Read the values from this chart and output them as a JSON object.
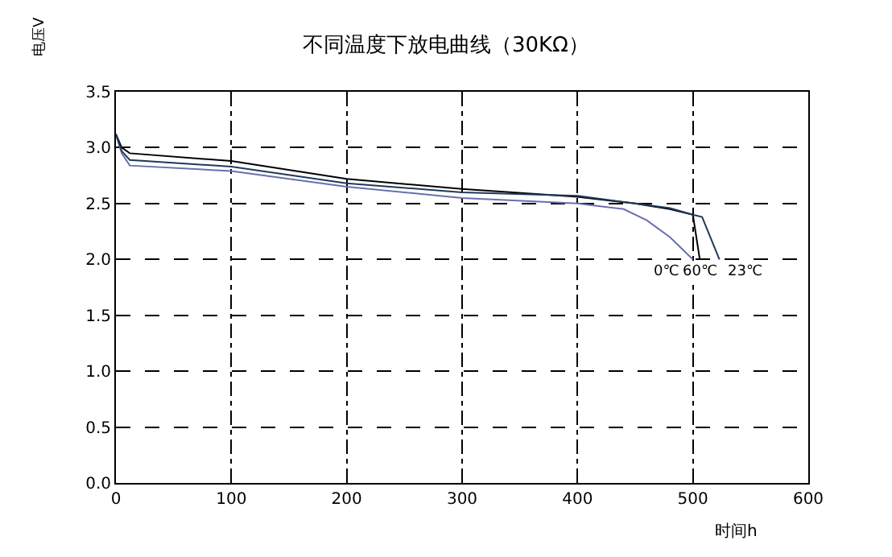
{
  "chart_data": {
    "type": "line",
    "title": "不同温度下放电曲线（30KΩ）",
    "xlabel": "时间h",
    "ylabel": "电压V",
    "xlim": [
      0,
      600
    ],
    "xticks": [
      0,
      100,
      200,
      300,
      400,
      500,
      600
    ],
    "ylim": [
      0,
      3.5
    ],
    "yticks": [
      {
        "value": 0,
        "label": "0.0"
      },
      {
        "value": 0.5,
        "label": "0.5"
      },
      {
        "value": 1,
        "label": "1.0"
      },
      {
        "value": 1.5,
        "label": "1.5"
      },
      {
        "value": 2,
        "label": "2.0"
      },
      {
        "value": 2.5,
        "label": "2.5"
      },
      {
        "value": 3,
        "label": "3.0"
      },
      {
        "value": 3.5,
        "label": "3.5"
      }
    ],
    "grid": true,
    "marker": "none",
    "line_style": "solid",
    "series": [
      {
        "color": "#6a6fae",
        "x": [
          0,
          5,
          12,
          100,
          200,
          300,
          400,
          440,
          460,
          480,
          500
        ],
        "values": [
          3.12,
          2.95,
          2.84,
          2.79,
          2.65,
          2.55,
          2.5,
          2.45,
          2.35,
          2.2,
          2.0
        ]
      },
      {
        "color": "#000000",
        "x": [
          0,
          5,
          12,
          100,
          200,
          300,
          400,
          450,
          480,
          500,
          506
        ],
        "values": [
          3.12,
          3.0,
          2.95,
          2.88,
          2.72,
          2.63,
          2.56,
          2.5,
          2.45,
          2.4,
          2.0
        ]
      },
      {
        "color": "#1f3a5a",
        "x": [
          0,
          5,
          12,
          100,
          200,
          300,
          400,
          450,
          480,
          500,
          508,
          523
        ],
        "values": [
          3.12,
          2.97,
          2.89,
          2.83,
          2.68,
          2.6,
          2.57,
          2.5,
          2.46,
          2.4,
          2.38,
          2.0
        ]
      }
    ],
    "annotations": [
      {
        "text": "0℃",
        "x": 500,
        "y": 2.0
      },
      {
        "text": "60℃",
        "x": 506,
        "y": 2.0
      },
      {
        "text": "23℃",
        "x": 523,
        "y": 2.0
      }
    ]
  }
}
